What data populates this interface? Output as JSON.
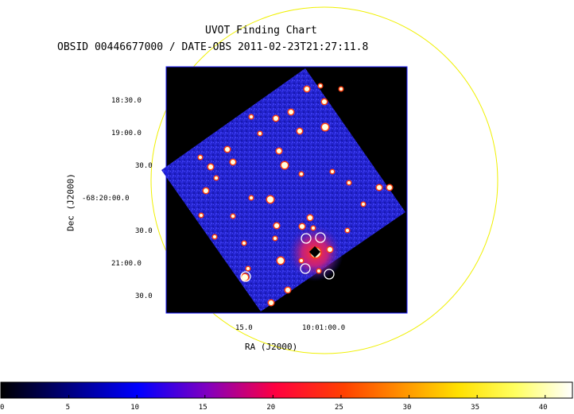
{
  "title": "UVOT Finding Chart",
  "subtitle": "OBSID 00446677000 / DATE-OBS 2011-02-23T21:27:11.8",
  "y_axis": {
    "label": "Dec (J2000)",
    "ticks": [
      "18:30.0",
      "19:00.0",
      "30.0",
      "-68:20:00.0",
      "30.0",
      "21:00.0",
      "30.0"
    ]
  },
  "x_axis": {
    "label": "RA (J2000)",
    "ticks": [
      "15.0",
      "10:01:00.0"
    ]
  },
  "colorbar": {
    "ticks": [
      "0",
      "5",
      "10",
      "15",
      "20",
      "25",
      "30",
      "35",
      "40"
    ],
    "range": [
      0,
      42
    ]
  },
  "colors": {
    "field_circle": "#f0f000",
    "image_background": "#000000",
    "sky": "#2020d0",
    "frame": "#1a1aff"
  }
}
